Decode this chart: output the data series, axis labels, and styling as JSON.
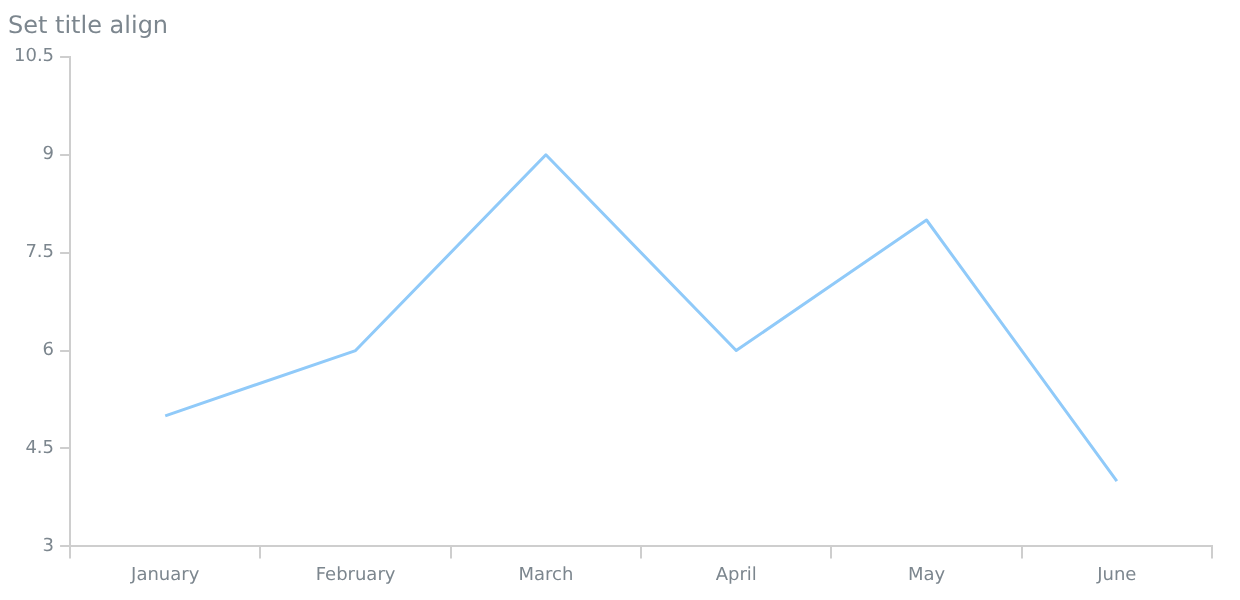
{
  "chart_data": {
    "type": "line",
    "title": "Set title align",
    "categories": [
      "January",
      "February",
      "March",
      "April",
      "May",
      "June"
    ],
    "series": [
      {
        "color": "#90caf9",
        "values": [
          5,
          6,
          9,
          6,
          8,
          4
        ]
      }
    ],
    "ylim": [
      3,
      10.5
    ],
    "yticks": [
      3,
      4.5,
      6,
      7.5,
      9,
      10.5
    ],
    "grid": false,
    "legend": false,
    "marker": "none",
    "line_style": "solid"
  }
}
